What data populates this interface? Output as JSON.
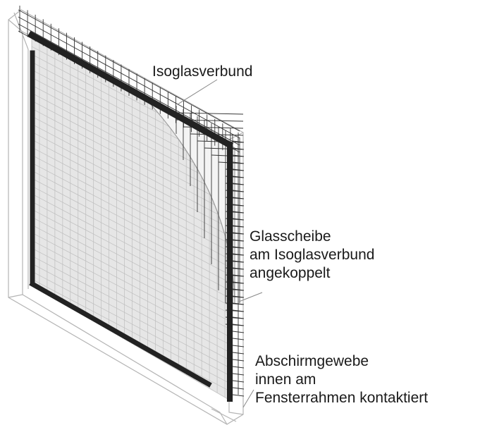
{
  "labels": {
    "isoglas": "Isoglasverbund",
    "glasscheibe": [
      "Glasscheibe",
      "am Isoglasverbund",
      "angekoppelt"
    ],
    "abschirm": [
      "Abschirmgewebe",
      "innen am",
      "Fensterrahmen kontaktiert"
    ]
  },
  "colors": {
    "frame": "#222222",
    "mesh": "#333333",
    "outline": "#b4b4b4",
    "glass": "#e6e6e6"
  }
}
